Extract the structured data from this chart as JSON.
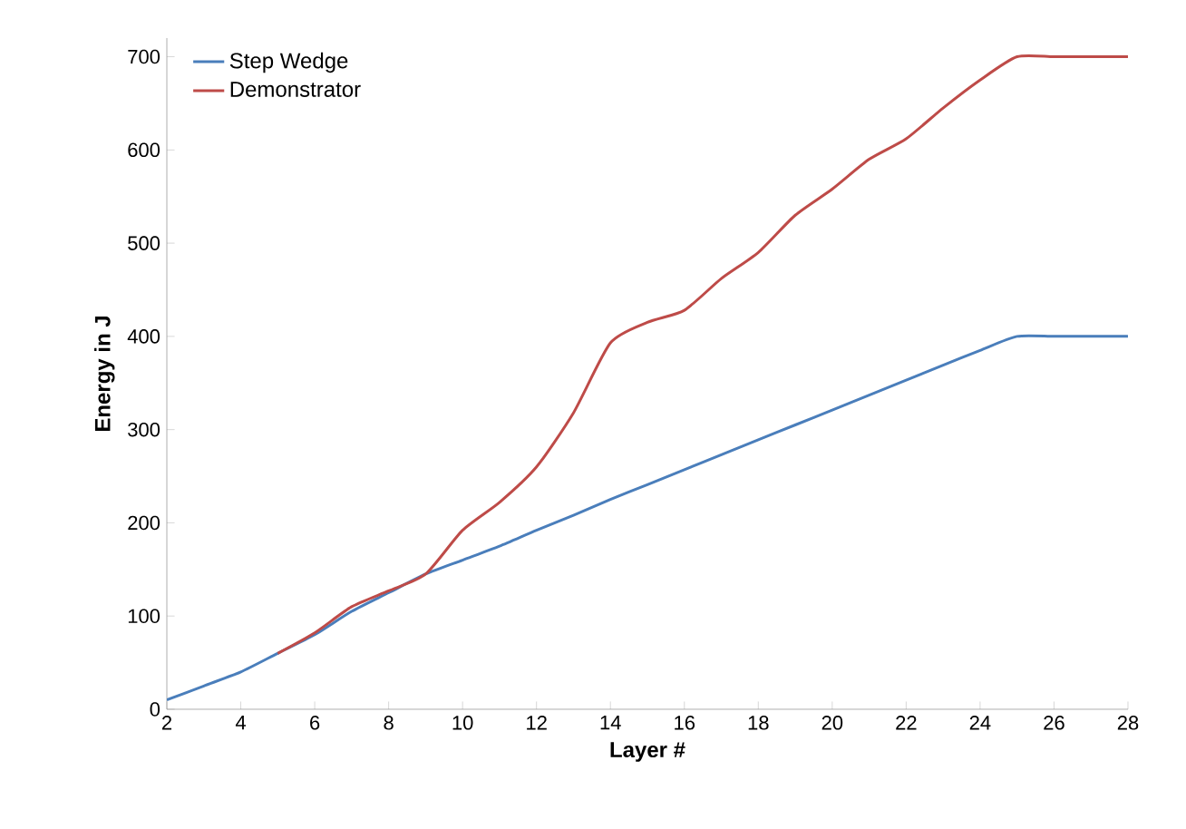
{
  "chart_data": {
    "type": "line",
    "xlabel": "Layer #",
    "ylabel": "Energy in J",
    "xlim": [
      2,
      28
    ],
    "xticks": [
      2,
      4,
      6,
      8,
      10,
      12,
      14,
      16,
      18,
      20,
      22,
      24,
      26,
      28
    ],
    "ylim": [
      0,
      720
    ],
    "yticks": [
      0,
      100,
      200,
      300,
      400,
      500,
      600,
      700
    ],
    "legend": "top left",
    "grid": false,
    "series": [
      {
        "name": "Step Wedge",
        "color": "#4a7ebb",
        "x": [
          2,
          3,
          4,
          5,
          6,
          7,
          8,
          9,
          10,
          11,
          12,
          13,
          14,
          15,
          16,
          17,
          18,
          19,
          20,
          21,
          22,
          23,
          24,
          25,
          26,
          27,
          28
        ],
        "values": [
          10,
          25,
          40,
          60,
          80,
          105,
          125,
          145,
          160,
          175,
          192,
          208,
          225,
          241,
          257,
          273,
          289,
          305,
          321,
          337,
          353,
          369,
          385,
          400,
          400,
          400,
          400
        ]
      },
      {
        "name": "Demonstrator",
        "color": "#be4b48",
        "x": [
          5,
          6,
          7,
          8,
          9,
          10,
          11,
          12,
          13,
          14,
          15,
          16,
          17,
          18,
          19,
          20,
          21,
          22,
          23,
          24,
          25,
          26,
          27,
          28
        ],
        "values": [
          60,
          82,
          110,
          127,
          145,
          192,
          222,
          260,
          318,
          393,
          415,
          428,
          462,
          490,
          530,
          558,
          590,
          612,
          645,
          675,
          700,
          700,
          700,
          700
        ]
      }
    ]
  }
}
